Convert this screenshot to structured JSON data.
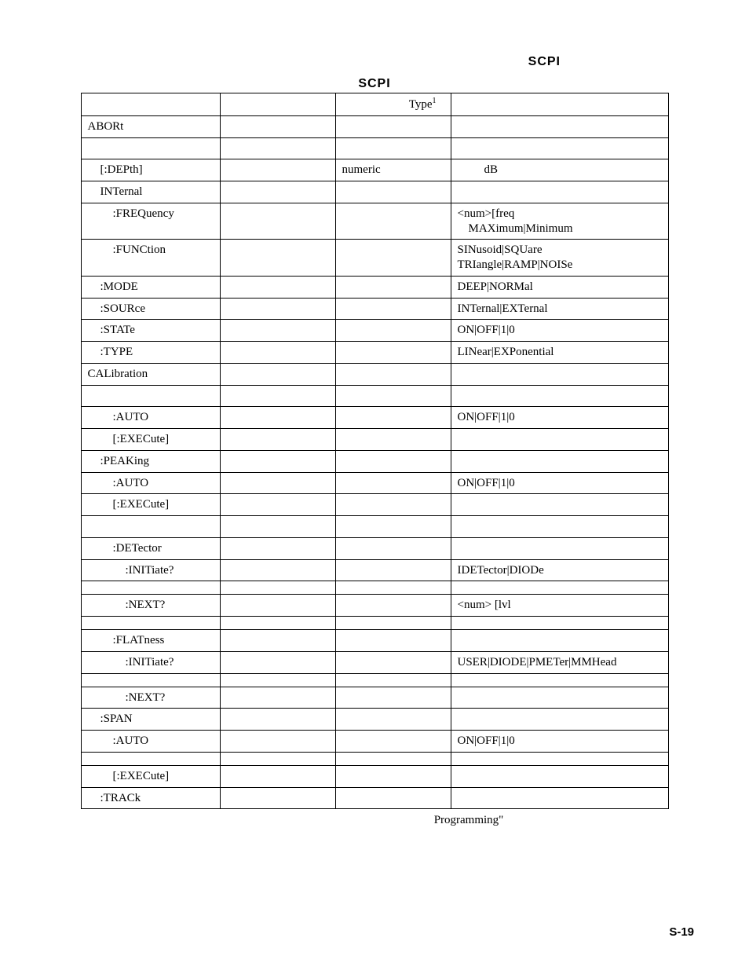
{
  "header": {
    "right_label": "SCPI"
  },
  "table": {
    "title": "SCPI",
    "columns": {
      "cmd": "",
      "mid": "",
      "type": "Type",
      "type_footnote": "1",
      "values": ""
    },
    "rows": [
      {
        "cmd": "ABORt",
        "indent": 0
      },
      {
        "spacer": true
      },
      {
        "cmd": "[:DEPth]",
        "indent": 1,
        "type": "numeric",
        "values": "dB",
        "values_indent": true
      },
      {
        "cmd": "INTernal",
        "indent": 1
      },
      {
        "cmd": ":FREQuency",
        "indent": 2,
        "values": "<num>[freq",
        "values2": "MAXimum|Minimum",
        "values2_indent": true
      },
      {
        "cmd": ":FUNCtion",
        "indent": 2,
        "values": "SINusoid|SQUare",
        "values2": "TRIangle|RAMP|NOISe"
      },
      {
        "cmd": ":MODE",
        "indent": 1,
        "values": "DEEP|NORMal"
      },
      {
        "cmd": ":SOURce",
        "indent": 1,
        "values": "INTernal|EXTernal"
      },
      {
        "cmd": ":STATe",
        "indent": 1,
        "values": "ON|OFF|1|0"
      },
      {
        "cmd": ":TYPE",
        "indent": 1,
        "values": "LINear|EXPonential"
      },
      {
        "cmd": "CALibration",
        "indent": 0
      },
      {
        "spacer": true
      },
      {
        "cmd": ":AUTO",
        "indent": 2,
        "values": "ON|OFF|1|0"
      },
      {
        "cmd": "[:EXECute]",
        "indent": 2
      },
      {
        "cmd": ":PEAKing",
        "indent": 1
      },
      {
        "cmd": ":AUTO",
        "indent": 2,
        "values": "ON|OFF|1|0"
      },
      {
        "cmd": "[:EXECute]",
        "indent": 2
      },
      {
        "spacer": true
      },
      {
        "cmd": ":DETector",
        "indent": 2
      },
      {
        "cmd": ":INITiate?",
        "indent": 3,
        "values": "IDETector|DIODe"
      },
      {
        "spacer_small": true
      },
      {
        "cmd": ":NEXT?",
        "indent": 3,
        "values": "<num> [lvl"
      },
      {
        "spacer_small": true
      },
      {
        "cmd": ":FLATness",
        "indent": 2
      },
      {
        "cmd": ":INITiate?",
        "indent": 3,
        "values": "USER|DIODE|PMETer|MMHead"
      },
      {
        "spacer_small": true
      },
      {
        "cmd": ":NEXT?",
        "indent": 3
      },
      {
        "cmd": ":SPAN",
        "indent": 1
      },
      {
        "cmd": ":AUTO",
        "indent": 2,
        "values": "ON|OFF|1|0"
      },
      {
        "spacer_small": true
      },
      {
        "cmd": "[:EXECute]",
        "indent": 2
      },
      {
        "cmd": ":TRACk",
        "indent": 1
      }
    ]
  },
  "footer": {
    "caption": "Programming\"",
    "page_number": "S-19"
  }
}
